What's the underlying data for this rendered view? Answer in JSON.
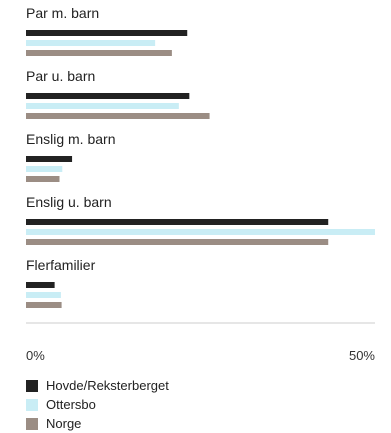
{
  "chart_data": {
    "type": "bar",
    "orientation": "horizontal",
    "title": "",
    "xlabel": "",
    "ylabel": "",
    "categories": [
      "Par m. barn",
      "Par u. barn",
      "Enslig m. barn",
      "Enslig u. barn",
      "Flerfamilier"
    ],
    "series": [
      {
        "name": "Hovde/Reksterberget",
        "color": "#222222",
        "values": [
          23.1,
          23.4,
          6.6,
          43.3,
          4.1
        ]
      },
      {
        "name": "Ottersbo",
        "color": "#c9edf5",
        "values": [
          18.5,
          21.9,
          5.2,
          50.0,
          5.0
        ]
      },
      {
        "name": "Norge",
        "color": "#9b8d84",
        "values": [
          20.9,
          26.3,
          4.8,
          43.3,
          5.1
        ]
      }
    ],
    "xlim": [
      0,
      50
    ],
    "x_ticks": [
      "0%",
      "50%"
    ],
    "grid": false,
    "legend_position": "bottom-left"
  }
}
